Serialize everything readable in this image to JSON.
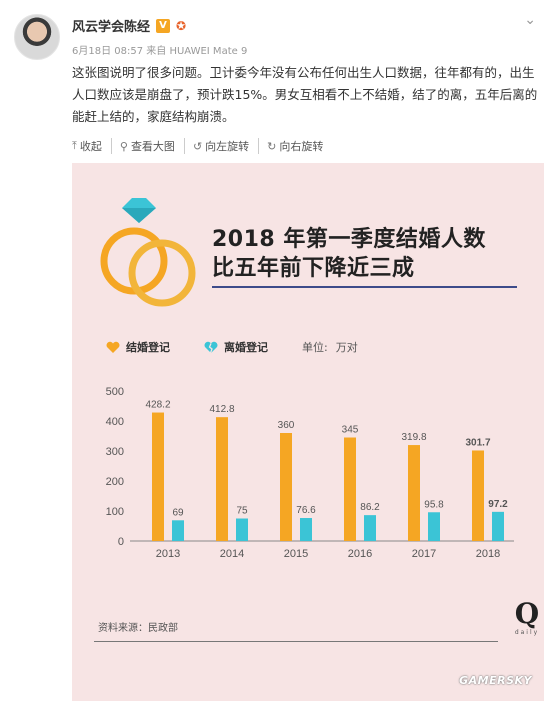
{
  "post": {
    "author": "风云学会陈经",
    "verified_badge": "V",
    "time": "6月18日 08:57",
    "source_prefix": "来自",
    "device": "HUAWEI Mate 9",
    "text": "这张图说明了很多问题。卫计委今年没有公布任何出生人口数据，往年都有的，出生人口数应该是崩盘了，预计跌15%。男女互相看不上不结婚，结了的离，五年后离的能赶上结的，家庭结构崩溃。"
  },
  "toolbar": {
    "collapse": "收起",
    "view_large": "查看大图",
    "rotate_left": "向左旋转",
    "rotate_right": "向右旋转"
  },
  "infographic": {
    "headline_line1": "2018 年第一季度结婚人数",
    "headline_line2": "比五年前下降近三成",
    "legend_marriage": "结婚登记",
    "legend_divorce": "离婚登记",
    "unit_label": "单位:",
    "unit_value": "万对",
    "source": "资料来源：民政部",
    "logo_letter": "Q",
    "logo_word": "daily",
    "watermark": "GAMERSKY",
    "colors": {
      "marriage": "#f5a623",
      "divorce": "#3bc4d6",
      "background": "#f7e4e4"
    }
  },
  "chart_data": {
    "type": "bar",
    "categories": [
      "2013",
      "2014",
      "2015",
      "2016",
      "2017",
      "2018"
    ],
    "series": [
      {
        "name": "结婚登记",
        "values": [
          428.2,
          412.8,
          360,
          345,
          319.8,
          301.7
        ],
        "labels": [
          "428.2",
          "412.8",
          "360",
          "345",
          "319.8",
          "301.7"
        ]
      },
      {
        "name": "离婚登记",
        "values": [
          69,
          75,
          76.6,
          86.2,
          95.8,
          97.2
        ],
        "labels": [
          "69",
          "75",
          "76.6",
          "86.2",
          "95.8",
          "97.2"
        ]
      }
    ],
    "yticks": [
      "0",
      "100",
      "200",
      "300",
      "400",
      "500"
    ],
    "ylim": [
      0,
      500
    ],
    "grid": false,
    "legend": "top-left"
  }
}
